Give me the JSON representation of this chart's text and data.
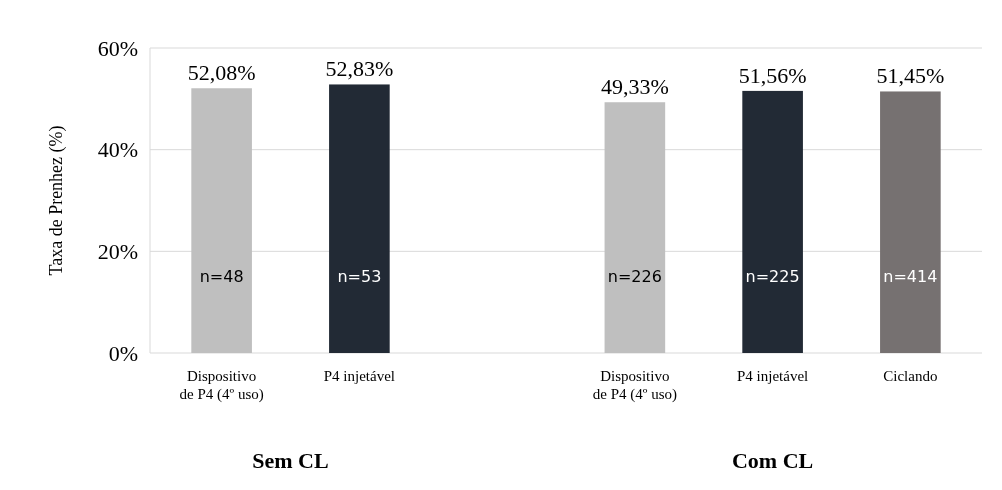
{
  "chart_data": {
    "type": "bar",
    "ylabel": "Taxa de Prenhez (%)",
    "categories": [
      "Dispositivo de P4 (4º uso)",
      "P4 injetável",
      null,
      "Dispositivo de P4 (4º uso)",
      "P4 injetável",
      "Ciclando"
    ],
    "values": [
      52.08,
      52.83,
      null,
      49.33,
      51.56,
      51.45
    ],
    "colors": [
      "#bfbfbf",
      "#222a35",
      null,
      "#bfbfbf",
      "#222a35",
      "#767171"
    ],
    "value_labels": [
      "52,08%",
      "52,83%",
      null,
      "49,33%",
      "51,56%",
      "51,45%"
    ],
    "ylim": [
      0,
      60
    ],
    "yticks": [
      {
        "value": 0,
        "label": "0%"
      },
      {
        "value": 20,
        "label": "20%"
      },
      {
        "value": 40,
        "label": "40%"
      },
      {
        "value": 60,
        "label": "60%"
      }
    ],
    "grid": "y",
    "annotations": [
      "n=48",
      "n=53",
      "n=226",
      "n=225",
      "n=414",
      "Sem CL",
      "Com CL"
    ]
  }
}
